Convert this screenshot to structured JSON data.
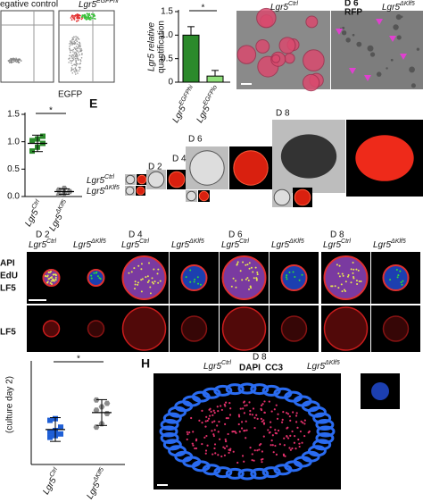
{
  "panel_a": {
    "titles": [
      "egative control",
      {
        "text": "Lgr5",
        "sup": "EGFPhi"
      }
    ],
    "x_label": "EGFP"
  },
  "panel_c": {
    "genotypes": [
      {
        "text": "Lgr5",
        "sup": "Ctrl"
      },
      {
        "text": "Lgr5",
        "sup": "ΔKlf5"
      }
    ],
    "day": "D 6",
    "channel": "RFP"
  },
  "panel_e": {
    "letter": "E",
    "days": [
      "D 2",
      "D 4",
      "D 6",
      "D 8"
    ],
    "genotypes": [
      {
        "text": "Lgr5",
        "sup": "Ctrl"
      },
      {
        "text": "Lgr5",
        "sup": "ΔKlf5"
      }
    ]
  },
  "panel_f": {
    "days": [
      "D 2",
      "D 4",
      "D 6",
      "D 8"
    ],
    "genotypes": [
      {
        "text": "Lgr5",
        "sup": "Ctrl"
      },
      {
        "text": "Lgr5",
        "sup": "ΔKlf5"
      }
    ],
    "stains": [
      "API",
      "EdU",
      "LF5"
    ],
    "bottom_stain": "LF5"
  },
  "panel_h": {
    "letter": "H",
    "day": "D 8",
    "stains": [
      "DAPI",
      "CC3"
    ],
    "genotypes": [
      {
        "text": "Lgr5",
        "sup": "Ctrl"
      },
      {
        "text": "Lgr5",
        "sup": "ΔKlf5"
      }
    ]
  },
  "chart_data": [
    {
      "type": "bar",
      "y_label": [
        "Lgr5 relative",
        "quantification"
      ],
      "categories": [
        {
          "text": "Lgr5",
          "sup": "EGFPhi"
        },
        {
          "text": "Lgr5",
          "sup": "EGFPlo"
        }
      ],
      "values": [
        1.0,
        0.13
      ],
      "errors": [
        0.18,
        0.12
      ],
      "colors": [
        "#2b8a2b",
        "#8fe07a"
      ],
      "ylim": [
        0,
        1.5
      ],
      "yticks": [
        0,
        0.5,
        {
          "value": 1,
          "label": "1.0"
        },
        1.5
      ],
      "annotation": "*"
    },
    {
      "type": "dot",
      "categories": [
        {
          "text": "Lgr5",
          "sup": "Ctrl"
        },
        {
          "text": "Lgr5",
          "sup": "ΔKlf5"
        }
      ],
      "groups": [
        {
          "values": [
            0.83,
            0.9,
            0.97,
            1.02,
            1.05,
            1.1
          ],
          "mean": 0.97,
          "sd": 0.15,
          "color": "#2b8a2b",
          "marker": "square"
        },
        {
          "values": [
            0.03,
            0.06,
            0.09,
            0.12,
            0.15
          ],
          "mean": 0.09,
          "sd": 0.05,
          "color": "#8c8c8c",
          "marker": "hexagon"
        }
      ],
      "ylim": [
        0,
        1.5
      ],
      "yticks": [
        {
          "value": 0,
          "label": "0.0"
        },
        0.5,
        {
          "value": 1,
          "label": "1.0"
        },
        1.5
      ],
      "annotation": "*"
    },
    {
      "type": "dot",
      "y_label": "(culture day 2)",
      "categories": [
        {
          "text": "Lgr5",
          "sup": "Ctrl"
        },
        {
          "text": "Lgr5",
          "sup": "ΔKlf5"
        }
      ],
      "groups": [
        {
          "values": [
            8,
            8.5,
            9,
            9.5,
            10,
            11,
            13,
            13.5
          ],
          "mean": 10.3,
          "sd": 3.5,
          "color": "#1f5fd6",
          "marker": "square"
        },
        {
          "values": [
            11,
            12,
            15,
            16,
            17,
            18,
            19
          ],
          "mean": 15.3,
          "sd": 3.8,
          "color": "#8c8c8c",
          "marker": "hexagon"
        }
      ],
      "ylim": [
        0,
        30
      ],
      "annotation": "*"
    }
  ]
}
